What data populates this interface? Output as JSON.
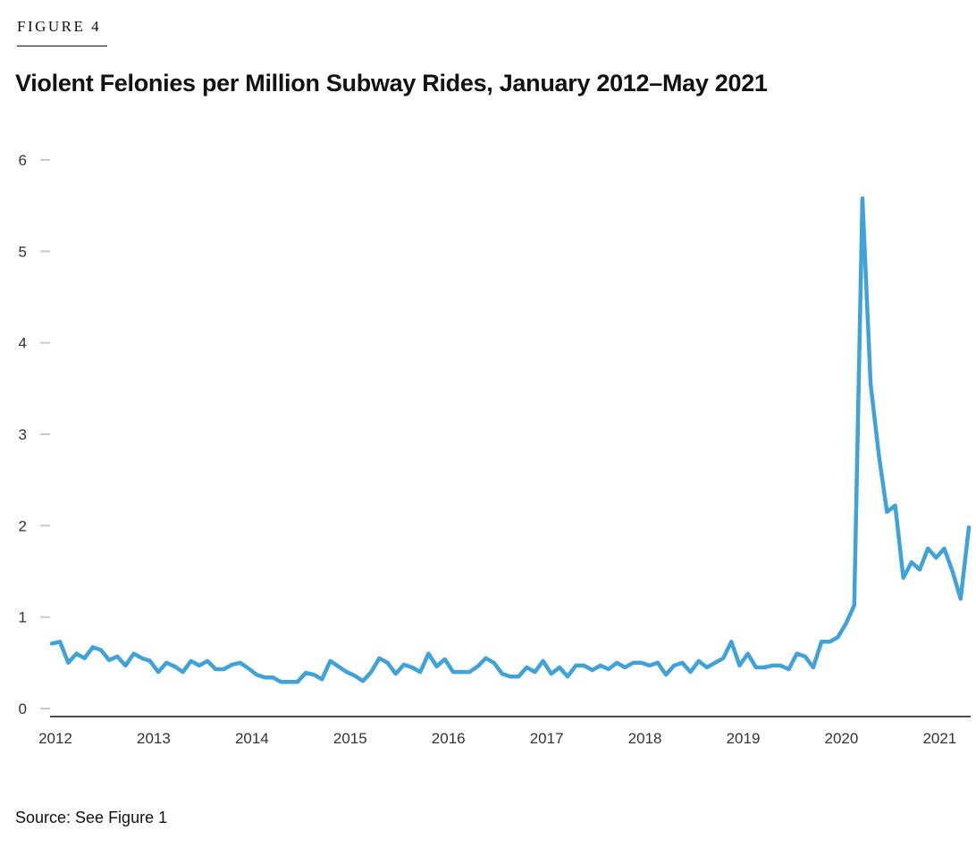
{
  "figure_label": "FIGURE 4",
  "source": "Source: See Figure 1",
  "chart_data": {
    "type": "line",
    "title": "Violent Felonies per Million Subway Rides, January 2012–May 2021",
    "xlabel": "",
    "ylabel": "",
    "ylim": [
      0,
      6
    ],
    "yticks": [
      "0",
      "1",
      "2",
      "3",
      "4",
      "5",
      "6"
    ],
    "xticks": [
      "2012",
      "2013",
      "2014",
      "2015",
      "2016",
      "2017",
      "2018",
      "2019",
      "2020",
      "2021"
    ],
    "x_start": "2012-01",
    "x_end": "2021-05",
    "color": "#3fa2d9",
    "series": [
      {
        "name": "Violent felonies per million subway rides",
        "values": [
          0.71,
          0.73,
          0.5,
          0.6,
          0.55,
          0.67,
          0.64,
          0.53,
          0.57,
          0.47,
          0.6,
          0.55,
          0.52,
          0.4,
          0.5,
          0.46,
          0.4,
          0.52,
          0.47,
          0.52,
          0.43,
          0.43,
          0.48,
          0.5,
          0.44,
          0.37,
          0.34,
          0.34,
          0.29,
          0.29,
          0.29,
          0.39,
          0.37,
          0.32,
          0.52,
          0.46,
          0.4,
          0.36,
          0.3,
          0.4,
          0.55,
          0.5,
          0.38,
          0.48,
          0.45,
          0.4,
          0.6,
          0.46,
          0.54,
          0.4,
          0.4,
          0.4,
          0.46,
          0.55,
          0.5,
          0.38,
          0.35,
          0.35,
          0.45,
          0.4,
          0.52,
          0.38,
          0.45,
          0.35,
          0.47,
          0.47,
          0.42,
          0.47,
          0.43,
          0.5,
          0.45,
          0.5,
          0.5,
          0.47,
          0.5,
          0.37,
          0.47,
          0.5,
          0.4,
          0.52,
          0.45,
          0.5,
          0.55,
          0.73,
          0.47,
          0.6,
          0.45,
          0.45,
          0.47,
          0.47,
          0.43,
          0.6,
          0.57,
          0.45,
          0.73,
          0.73,
          0.78,
          0.93,
          1.13,
          5.58,
          3.55,
          2.78,
          2.15,
          2.22,
          1.43,
          1.6,
          1.52,
          1.75,
          1.65,
          1.75,
          1.5,
          1.2,
          1.98
        ]
      }
    ]
  }
}
